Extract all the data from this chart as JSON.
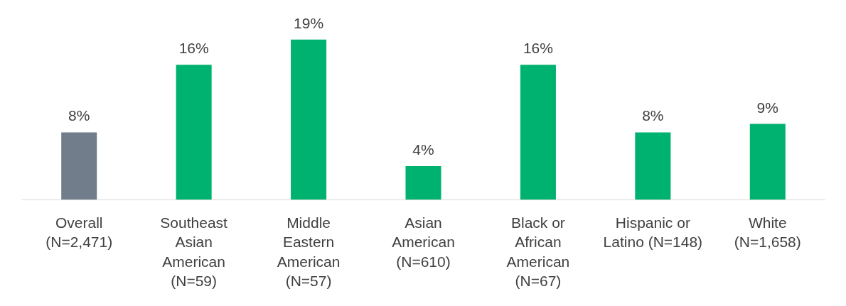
{
  "chart_data": {
    "type": "bar",
    "categories": [
      "Overall\n(N=2,471)",
      "Southeast\nAsian\nAmerican\n(N=59)",
      "Middle\nEastern\nAmerican\n(N=57)",
      "Asian\nAmerican\n(N=610)",
      "Black or\nAfrican\nAmerican\n(N=67)",
      "Hispanic or\nLatino (N=148)",
      "White\n(N=1,658)"
    ],
    "values": [
      8,
      16,
      19,
      4,
      16,
      8,
      9
    ],
    "colors": [
      "#717d8a",
      "#00b26f",
      "#00b26f",
      "#00b26f",
      "#00b26f",
      "#00b26f",
      "#00b26f"
    ],
    "value_labels": [
      "8%",
      "16%",
      "19%",
      "4%",
      "16%",
      "8%",
      "9%"
    ],
    "tick_labels": "x",
    "grid": false
  }
}
